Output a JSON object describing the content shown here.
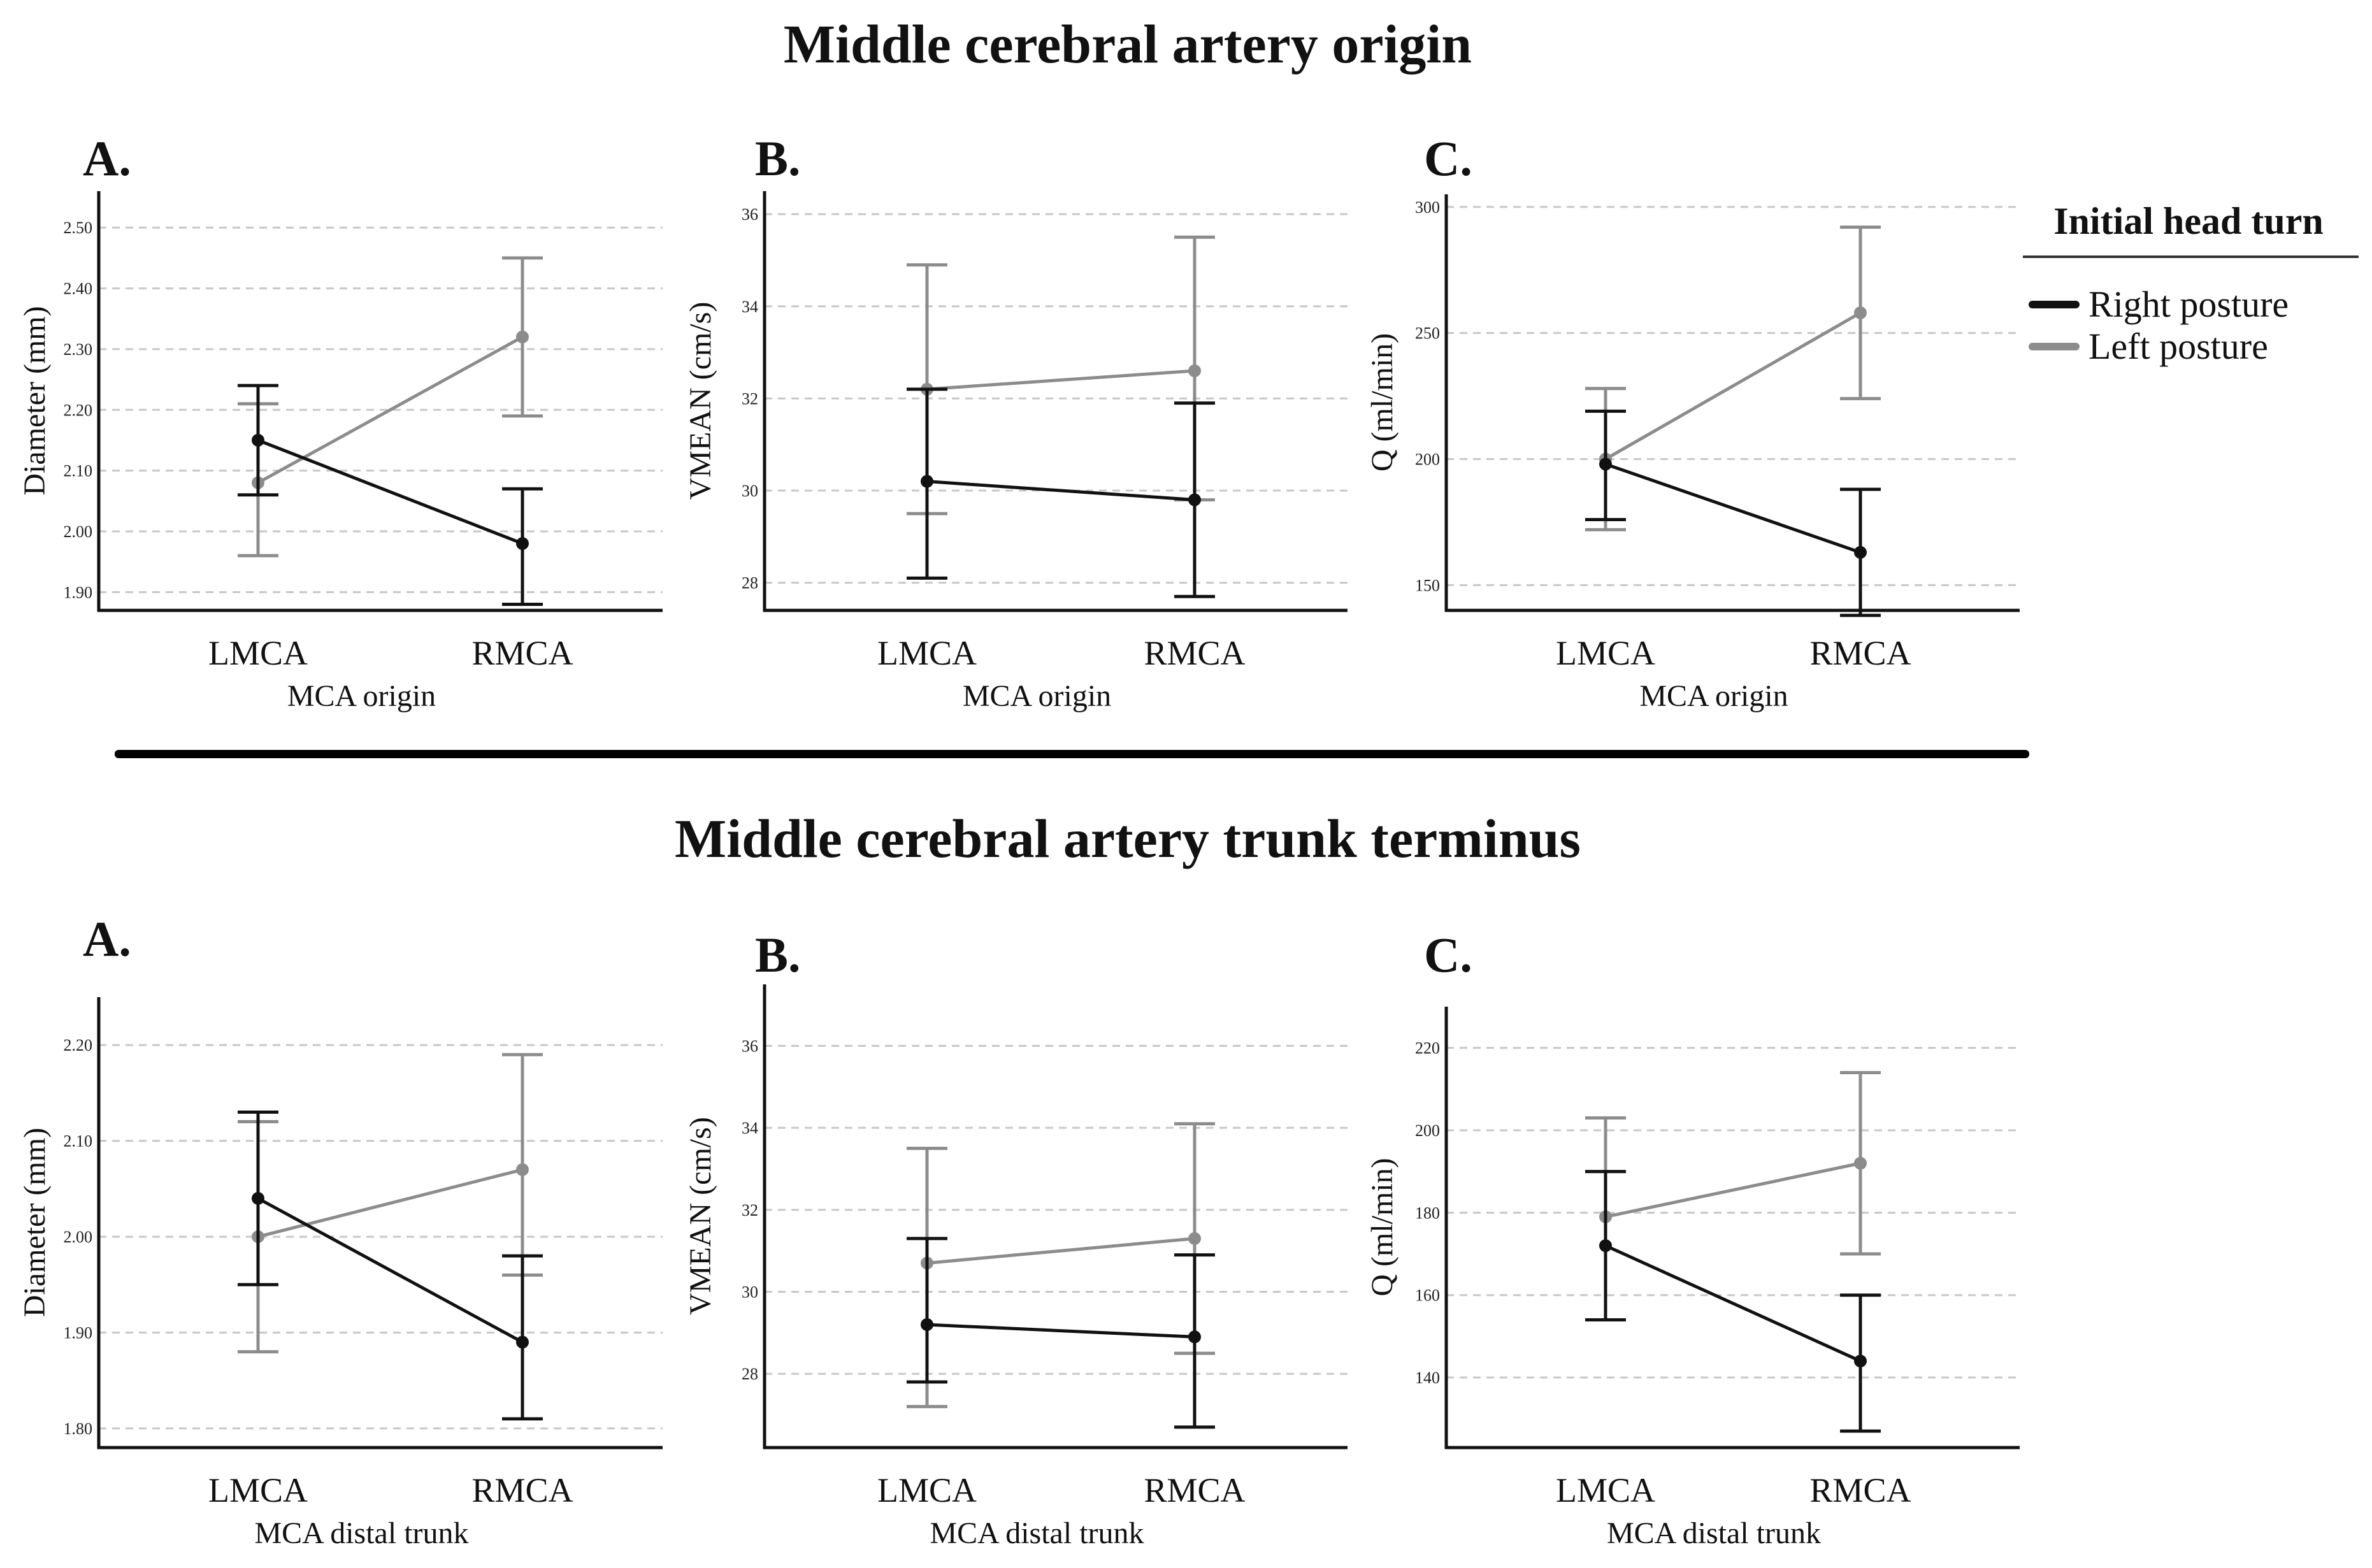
{
  "sections": [
    {
      "title": "Middle cerebral artery origin"
    },
    {
      "title": "Middle cerebral artery trunk terminus"
    }
  ],
  "legend": {
    "title": "Initial head turn",
    "items": [
      {
        "label": "Right posture",
        "color": "#111111"
      },
      {
        "label": "Left posture",
        "color": "#8c8c8c"
      }
    ]
  },
  "colors": {
    "right": "#111111",
    "left": "#8c8c8c",
    "grid": "#c8c8c8"
  },
  "chart_data": [
    {
      "type": "line",
      "label": "A.",
      "section": "Middle cerebral artery origin",
      "ylabel": "Diameter (mm)",
      "xlabel": "MCA origin",
      "categories": [
        "LMCA",
        "RMCA"
      ],
      "ylim": [
        1.87,
        2.56
      ],
      "yticks": [
        "1.90",
        "2.00",
        "2.10",
        "2.20",
        "2.30",
        "2.40",
        "2.50"
      ],
      "series": [
        {
          "name": "Right posture",
          "values": [
            2.15,
            1.98
          ],
          "lower": [
            2.06,
            1.88
          ],
          "upper": [
            2.24,
            2.07
          ]
        },
        {
          "name": "Left posture",
          "values": [
            2.08,
            2.32
          ],
          "lower": [
            1.96,
            2.19
          ],
          "upper": [
            2.21,
            2.45
          ]
        }
      ]
    },
    {
      "type": "line",
      "label": "B.",
      "section": "Middle cerebral artery origin",
      "ylabel": "VMEAN (cm/s)",
      "xlabel": "MCA origin",
      "categories": [
        "LMCA",
        "RMCA"
      ],
      "ylim": [
        27.4,
        36.5
      ],
      "yticks": [
        "28",
        "30",
        "32",
        "34",
        "36"
      ],
      "series": [
        {
          "name": "Right posture",
          "values": [
            30.2,
            29.8
          ],
          "lower": [
            28.1,
            27.7
          ],
          "upper": [
            32.2,
            31.9
          ]
        },
        {
          "name": "Left posture",
          "values": [
            32.2,
            32.6
          ],
          "lower": [
            29.5,
            29.8
          ],
          "upper": [
            34.9,
            35.5
          ]
        }
      ]
    },
    {
      "type": "line",
      "label": "C.",
      "section": "Middle cerebral artery origin",
      "ylabel": "Q (ml/min)",
      "xlabel": "MCA origin",
      "categories": [
        "LMCA",
        "RMCA"
      ],
      "ylim": [
        140,
        305
      ],
      "yticks": [
        "150",
        "200",
        "250",
        "300"
      ],
      "series": [
        {
          "name": "Right posture",
          "values": [
            198,
            163
          ],
          "lower": [
            176,
            138
          ],
          "upper": [
            219,
            188
          ]
        },
        {
          "name": "Left posture",
          "values": [
            200,
            258
          ],
          "lower": [
            172,
            224
          ],
          "upper": [
            228,
            292
          ]
        }
      ]
    },
    {
      "type": "line",
      "label": "A.",
      "section": "Middle cerebral artery trunk terminus",
      "ylabel": "Diameter (mm)",
      "xlabel": "MCA distal trunk",
      "categories": [
        "LMCA",
        "RMCA"
      ],
      "ylim": [
        1.78,
        2.25
      ],
      "yticks": [
        "1.80",
        "1.90",
        "2.00",
        "2.10",
        "2.20"
      ],
      "series": [
        {
          "name": "Right posture",
          "values": [
            2.04,
            1.89
          ],
          "lower": [
            1.95,
            1.81
          ],
          "upper": [
            2.13,
            1.98
          ]
        },
        {
          "name": "Left posture",
          "values": [
            2.0,
            2.07
          ],
          "lower": [
            1.88,
            1.96
          ],
          "upper": [
            2.12,
            2.19
          ]
        }
      ]
    },
    {
      "type": "line",
      "label": "B.",
      "section": "Middle cerebral artery trunk terminus",
      "ylabel": "VMEAN (cm/s)",
      "xlabel": "MCA distal trunk",
      "categories": [
        "LMCA",
        "RMCA"
      ],
      "ylim": [
        26.2,
        37.5
      ],
      "yticks": [
        "28",
        "30",
        "32",
        "34",
        "36"
      ],
      "series": [
        {
          "name": "Right posture",
          "values": [
            29.2,
            28.9
          ],
          "lower": [
            27.8,
            26.7
          ],
          "upper": [
            31.3,
            30.9
          ]
        },
        {
          "name": "Left posture",
          "values": [
            30.7,
            31.3
          ],
          "lower": [
            27.2,
            28.5
          ],
          "upper": [
            33.5,
            34.1
          ]
        }
      ]
    },
    {
      "type": "line",
      "label": "C.",
      "section": "Middle cerebral artery trunk terminus",
      "ylabel": "Q (ml/min)",
      "xlabel": "MCA distal trunk",
      "categories": [
        "LMCA",
        "RMCA"
      ],
      "ylim": [
        123,
        230
      ],
      "yticks": [
        "140",
        "160",
        "180",
        "200",
        "220"
      ],
      "series": [
        {
          "name": "Right posture",
          "values": [
            172,
            144
          ],
          "lower": [
            154,
            127
          ],
          "upper": [
            190,
            160
          ]
        },
        {
          "name": "Left posture",
          "values": [
            179,
            192
          ],
          "lower": [
            154,
            170
          ],
          "upper": [
            203,
            214
          ]
        }
      ]
    }
  ]
}
